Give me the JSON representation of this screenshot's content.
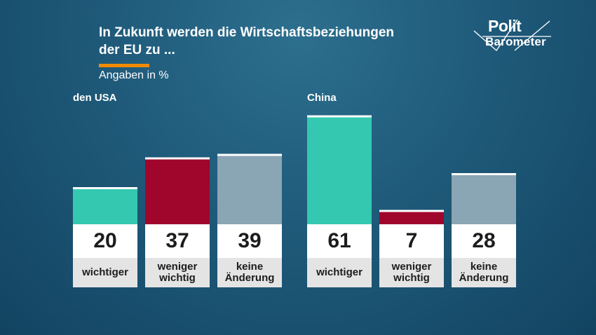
{
  "title_lines": [
    "In Zukunft werden die Wirtschaftsbeziehungen",
    "der EU zu ..."
  ],
  "subtitle": "Angaben in %",
  "logo": {
    "line1": "Polit",
    "line2": "Barometer"
  },
  "colors": {
    "wichtiger": "#34c8b0",
    "weniger_wichtig": "#a0062c",
    "keine_aenderung": "#8aa6b4",
    "accent": "#f08a00"
  },
  "chart_data": [
    {
      "type": "bar",
      "group": "den USA",
      "categories": [
        "wichtiger",
        "weniger wichtig",
        "keine Änderung"
      ],
      "category_lines": [
        [
          "wichtiger"
        ],
        [
          "weniger",
          "wichtig"
        ],
        [
          "keine",
          "Änderung"
        ]
      ],
      "values": [
        20,
        37,
        39
      ],
      "unit": "%"
    },
    {
      "type": "bar",
      "group": "China",
      "categories": [
        "wichtiger",
        "weniger wichtig",
        "keine Änderung"
      ],
      "category_lines": [
        [
          "wichtiger"
        ],
        [
          "weniger",
          "wichtig"
        ],
        [
          "keine",
          "Änderung"
        ]
      ],
      "values": [
        61,
        7,
        28
      ],
      "unit": "%"
    }
  ]
}
